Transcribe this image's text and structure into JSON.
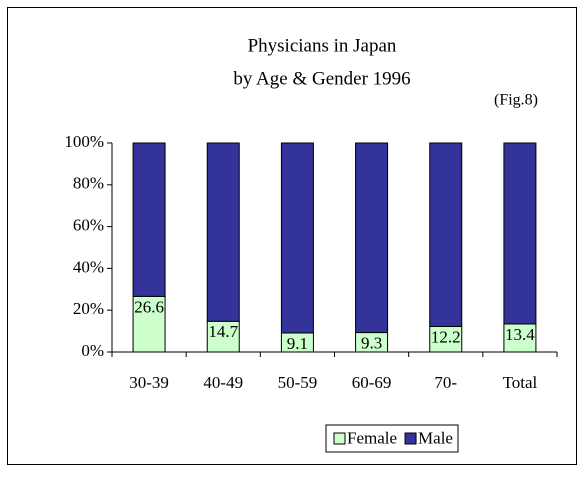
{
  "chart_data": {
    "type": "stacked_bar_percent",
    "title": "Physicians in Japan",
    "subtitle": "by Age & Gender 1996",
    "annotation": "(Fig.8)",
    "categories": [
      "30-39",
      "40-49",
      "50-59",
      "60-69",
      "70-",
      "Total"
    ],
    "series": [
      {
        "name": "Female",
        "color": "#ccffcc",
        "values": [
          26.6,
          14.7,
          9.1,
          9.3,
          12.2,
          13.4
        ]
      },
      {
        "name": "Male",
        "color": "#333399",
        "values": [
          73.4,
          85.3,
          90.9,
          90.7,
          87.8,
          86.6
        ]
      }
    ],
    "data_labels_series": 0,
    "ylim": [
      0,
      100
    ],
    "yticks": [
      {
        "value": 0,
        "label": "0%"
      },
      {
        "value": 20,
        "label": "20%"
      },
      {
        "value": 40,
        "label": "40%"
      },
      {
        "value": 60,
        "label": "60%"
      },
      {
        "value": 80,
        "label": "80%"
      },
      {
        "value": 100,
        "label": "100%"
      }
    ],
    "legend": "bottom"
  }
}
